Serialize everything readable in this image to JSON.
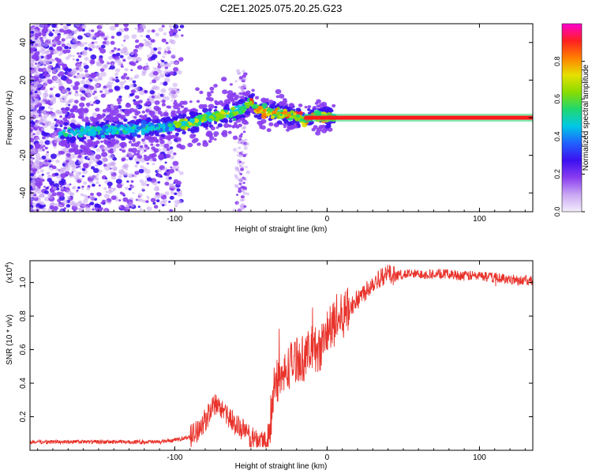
{
  "title": "C2E1.2025.075.20.25.G23",
  "colors": {
    "snr_line": "#e8322a",
    "carrier": "#e8322a",
    "axis": "#000000",
    "colormap": [
      "#f4eefc",
      "#c9a6f2",
      "#8a3df0",
      "#3c10f0",
      "#2060ff",
      "#00c8e6",
      "#20d870",
      "#8adc00",
      "#e6e000",
      "#ff8000",
      "#ff2020",
      "#ff00d0"
    ]
  },
  "chart_data": [
    {
      "type": "heatmap",
      "name": "spectrogram",
      "title": "C2E1.2025.075.20.25.G23",
      "xlabel": "Height of straight line (km)",
      "ylabel": "Frequency (Hz)",
      "xlim": [
        -195,
        135
      ],
      "ylim": [
        -50,
        50
      ],
      "x_ticks": [
        -100,
        0,
        100
      ],
      "y_ticks": [
        -40,
        -20,
        0,
        20,
        40
      ],
      "grid": false,
      "ridge": {
        "x": [
          -170,
          -150,
          -130,
          -110,
          -100,
          -90,
          -80,
          -70,
          -60,
          -55,
          -50,
          -48,
          -45,
          -40,
          -35,
          -30,
          -25,
          -20,
          -15,
          -10,
          -5,
          0,
          5
        ],
        "y": [
          -8,
          -7,
          -6,
          -5,
          -4,
          -3,
          0,
          1,
          3,
          5,
          9,
          6,
          4,
          3,
          3,
          2,
          1,
          1,
          -1,
          0,
          1,
          0,
          0
        ]
      },
      "carrier": {
        "x_range": [
          -15,
          135
        ],
        "frequency": 0
      },
      "colorbar": {
        "label": "Normalized spectral amplitude",
        "ticks": [
          0.0,
          0.2,
          0.4,
          0.6,
          0.8
        ],
        "range": [
          0,
          1
        ]
      }
    },
    {
      "type": "line",
      "name": "snr",
      "xlabel": "Height of straight line (km)",
      "ylabel": "SNR (10 * v/v)",
      "multiplier": "(x10",
      "multiplier_exp": "4",
      "multiplier_close": ")",
      "xlim": [
        -195,
        135
      ],
      "ylim": [
        0,
        1.13
      ],
      "x_ticks": [
        -100,
        0,
        100
      ],
      "y_ticks": [
        0.2,
        0.4,
        0.6,
        0.8,
        1.0
      ],
      "y_tick_labels": [
        "0.2",
        "0.4",
        "0.6",
        "0.8",
        "1.0"
      ],
      "grid": false,
      "series": [
        {
          "name": "SNR",
          "x": [
            -195,
            -170,
            -150,
            -130,
            -110,
            -100,
            -90,
            -85,
            -80,
            -75,
            -72,
            -70,
            -68,
            -65,
            -62,
            -60,
            -55,
            -50,
            -45,
            -40,
            -38,
            -36,
            -34,
            -32,
            -30,
            -25,
            -20,
            -15,
            -10,
            -5,
            0,
            5,
            10,
            15,
            20,
            25,
            30,
            35,
            40,
            45,
            50,
            60,
            70,
            80,
            90,
            100,
            110,
            120,
            135
          ],
          "y": [
            0.05,
            0.05,
            0.05,
            0.05,
            0.05,
            0.06,
            0.08,
            0.12,
            0.18,
            0.25,
            0.28,
            0.22,
            0.26,
            0.2,
            0.18,
            0.15,
            0.12,
            0.07,
            0.06,
            0.06,
            0.1,
            0.28,
            0.45,
            0.42,
            0.42,
            0.5,
            0.55,
            0.55,
            0.6,
            0.6,
            0.7,
            0.75,
            0.8,
            0.85,
            0.9,
            0.95,
            1.0,
            1.03,
            1.05,
            1.04,
            1.05,
            1.05,
            1.05,
            1.05,
            1.04,
            1.04,
            1.03,
            1.02,
            1.01
          ]
        }
      ]
    }
  ]
}
